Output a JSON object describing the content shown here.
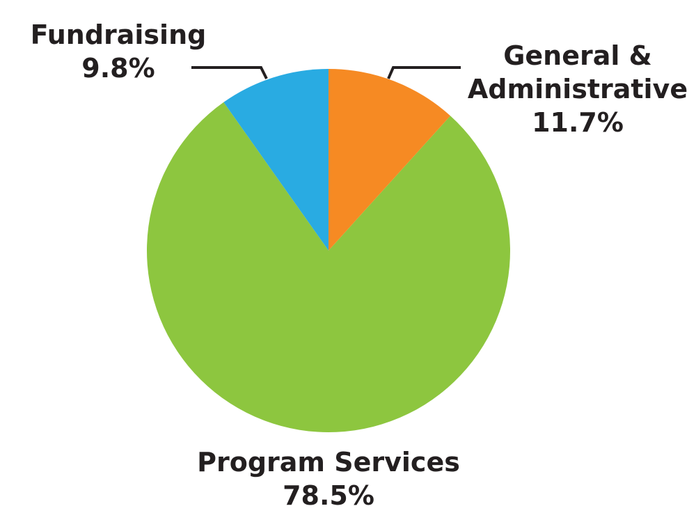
{
  "chart_data": {
    "type": "pie",
    "categories": [
      "General & Administrative",
      "Program Services",
      "Fundraising"
    ],
    "values": [
      11.7,
      78.5,
      9.8
    ],
    "value_labels": [
      "11.7%",
      "78.5%",
      "9.8%"
    ],
    "colors": [
      "#f68a23",
      "#8dc63f",
      "#29abe2"
    ]
  }
}
